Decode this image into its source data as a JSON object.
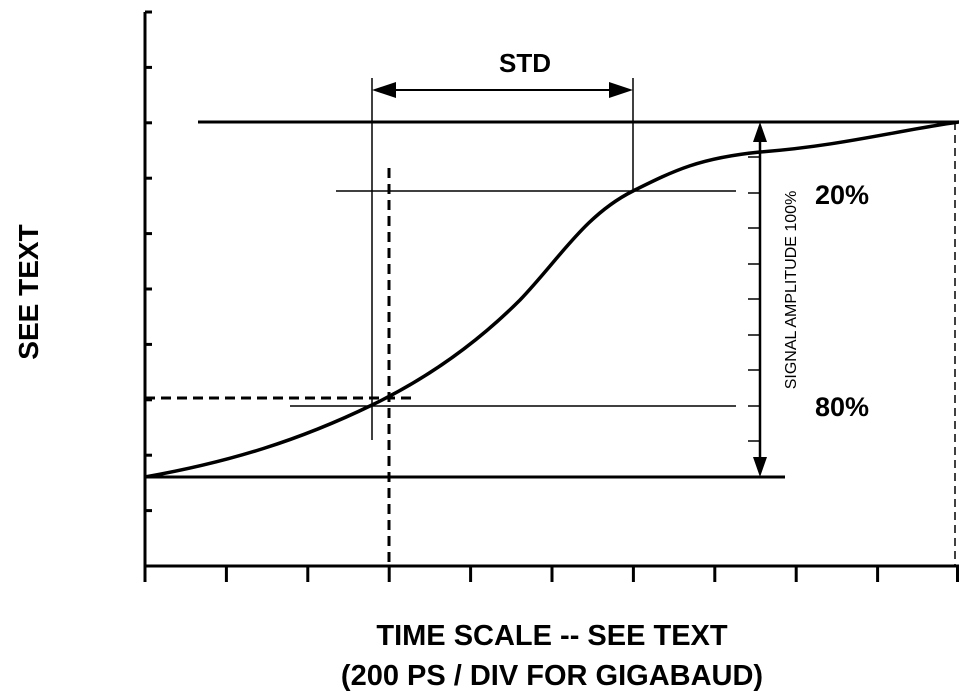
{
  "diagram": {
    "y_axis_label": "SEE TEXT",
    "x_axis_label": "TIME SCALE -- SEE TEXT",
    "x_axis_sublabel": "(200 PS / DIV FOR GIGABAUD)",
    "std_label": "STD",
    "level_high_label": "20%",
    "level_low_label": "80%",
    "amplitude_label": "SIGNAL AMPLITUDE 100%"
  }
}
